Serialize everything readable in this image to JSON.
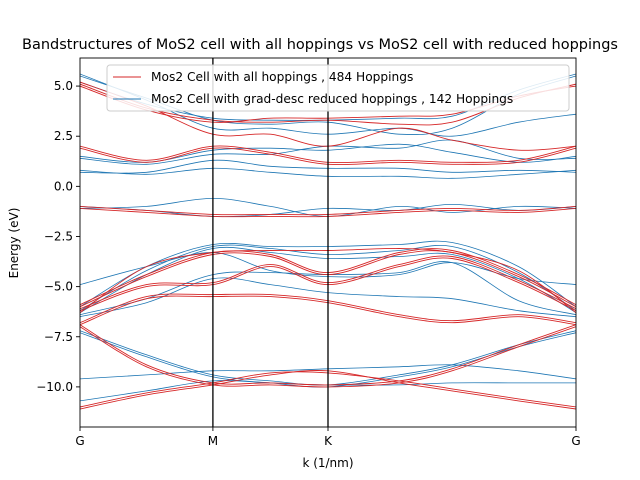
{
  "chart_data": {
    "type": "line",
    "title": "Bandstructures of MoS2 cell with all hoppings vs MoS2 cell with reduced hoppings",
    "xlabel": "k (1/nm)",
    "ylabel": "Energy (eV)",
    "xlim": [
      0,
      3.732
    ],
    "ylim": [
      -12.0,
      6.4
    ],
    "x_ticks": [
      {
        "label": "G",
        "value": 0
      },
      {
        "label": "M",
        "value": 1.0
      },
      {
        "label": "K",
        "value": 1.866
      },
      {
        "label": "G",
        "value": 3.732
      }
    ],
    "y_ticks": [
      {
        "label": "5.0",
        "value": 5.0
      },
      {
        "label": "2.5",
        "value": 2.5
      },
      {
        "label": "0.0",
        "value": 0.0
      },
      {
        "label": "−2.5",
        "value": -2.5
      },
      {
        "label": "−5.0",
        "value": -5.0
      },
      {
        "label": "−7.5",
        "value": -7.5
      },
      {
        "label": "−10.0",
        "value": -10.0
      }
    ],
    "vlines_at": [
      1.0,
      1.866
    ],
    "grid": false,
    "legend_position": "top-right",
    "k_path": [
      0,
      0.5,
      1.0,
      1.433,
      1.866,
      2.4,
      2.8,
      3.3,
      3.732
    ],
    "series": [
      {
        "name": "Mos2 Cell with all hoppings , 484 Hoppings",
        "color": "#d62728",
        "bands": [
          [
            -11.1,
            -10.4,
            -9.9,
            -9.4,
            -9.2,
            -9.8,
            -10.2,
            -10.7,
            -11.1
          ],
          [
            -11.0,
            -10.3,
            -9.8,
            -9.3,
            -9.3,
            -9.7,
            -10.1,
            -10.6,
            -11.0
          ],
          [
            -7.0,
            -9.0,
            -9.9,
            -9.9,
            -10.0,
            -9.8,
            -9.2,
            -8.0,
            -7.0
          ],
          [
            -6.9,
            -8.9,
            -9.8,
            -9.8,
            -9.9,
            -9.7,
            -9.1,
            -7.9,
            -6.9
          ],
          [
            -6.9,
            -5.6,
            -5.5,
            -5.5,
            -5.8,
            -6.5,
            -6.8,
            -6.5,
            -6.9
          ],
          [
            -6.8,
            -5.5,
            -5.4,
            -5.4,
            -5.7,
            -6.4,
            -6.7,
            -6.4,
            -6.8
          ],
          [
            -6.2,
            -5.0,
            -4.9,
            -4.0,
            -4.9,
            -4.0,
            -3.6,
            -4.8,
            -6.2
          ],
          [
            -6.1,
            -4.9,
            -4.8,
            -3.9,
            -4.8,
            -3.9,
            -3.5,
            -4.7,
            -6.1
          ],
          [
            -6.0,
            -4.5,
            -3.4,
            -3.5,
            -4.4,
            -3.4,
            -3.3,
            -4.5,
            -6.0
          ],
          [
            -5.9,
            -4.4,
            -3.3,
            -3.4,
            -4.3,
            -3.3,
            -3.2,
            -4.4,
            -5.9
          ],
          [
            -6.3,
            -4.0,
            -3.3,
            -3.2,
            -3.2,
            -3.1,
            -3.3,
            -4.2,
            -6.3
          ],
          [
            -1.1,
            -1.3,
            -1.5,
            -1.5,
            -1.5,
            -1.3,
            -1.2,
            -1.3,
            -1.1
          ],
          [
            -1.0,
            -1.2,
            -1.4,
            -1.4,
            -1.4,
            -1.2,
            -1.1,
            -1.2,
            -1.0
          ],
          [
            1.9,
            1.2,
            1.9,
            1.6,
            1.1,
            1.2,
            1.1,
            1.2,
            1.9
          ],
          [
            2.0,
            1.3,
            2.0,
            1.7,
            1.2,
            1.3,
            1.2,
            1.3,
            2.0
          ],
          [
            5.2,
            4.0,
            2.6,
            2.6,
            2.0,
            2.9,
            2.3,
            1.8,
            2.0
          ],
          [
            5.1,
            3.9,
            3.3,
            3.2,
            3.3,
            3.1,
            3.2,
            4.4,
            5.1
          ],
          [
            5.0,
            3.8,
            3.2,
            3.4,
            3.4,
            3.5,
            3.6,
            4.5,
            5.0
          ]
        ]
      },
      {
        "name": "Mos2 Cell with grad-desc reduced hoppings , 142 Hoppings",
        "color": "#1f77b4",
        "bands": [
          [
            -10.7,
            -10.2,
            -9.7,
            -9.8,
            -9.9,
            -9.9,
            -9.8,
            -9.8,
            -9.8
          ],
          [
            -9.6,
            -9.4,
            -9.2,
            -9.2,
            -9.1,
            -9.0,
            -8.9,
            -9.2,
            -9.6
          ],
          [
            -7.3,
            -8.5,
            -9.5,
            -9.8,
            -10.0,
            -9.5,
            -9.0,
            -8.0,
            -7.3
          ],
          [
            -7.2,
            -8.4,
            -9.4,
            -9.7,
            -9.9,
            -9.4,
            -8.9,
            -7.9,
            -7.2
          ],
          [
            -6.5,
            -5.8,
            -4.6,
            -4.9,
            -5.3,
            -5.5,
            -5.6,
            -6.2,
            -6.5
          ],
          [
            -6.4,
            -5.6,
            -4.4,
            -4.3,
            -4.4,
            -4.3,
            -3.8,
            -5.7,
            -6.4
          ],
          [
            -6.3,
            -4.4,
            -3.1,
            -3.3,
            -3.6,
            -3.5,
            -3.4,
            -4.6,
            -6.3
          ],
          [
            -6.2,
            -4.2,
            -3.0,
            -3.1,
            -3.4,
            -3.2,
            -3.0,
            -4.3,
            -6.2
          ],
          [
            -6.0,
            -4.0,
            -2.9,
            -3.0,
            -3.0,
            -2.9,
            -2.8,
            -4.0,
            -6.0
          ],
          [
            -4.9,
            -4.0,
            -3.3,
            -4.2,
            -4.5,
            -4.4,
            -3.8,
            -4.6,
            -4.9
          ],
          [
            -1.0,
            -1.2,
            -1.5,
            -1.4,
            -1.1,
            -1.2,
            -0.9,
            -1.2,
            -1.0
          ],
          [
            -1.1,
            -1.0,
            -0.6,
            -1.0,
            -1.5,
            -1.0,
            -1.3,
            -1.0,
            -1.1
          ],
          [
            0.8,
            0.6,
            0.9,
            0.7,
            0.5,
            0.5,
            0.4,
            0.6,
            0.8
          ],
          [
            0.7,
            0.7,
            1.3,
            1.0,
            0.9,
            0.9,
            0.7,
            0.8,
            0.7
          ],
          [
            1.5,
            1.2,
            1.8,
            1.9,
            1.8,
            2.1,
            1.7,
            1.2,
            1.5
          ],
          [
            1.4,
            1.1,
            1.6,
            1.6,
            2.0,
            1.9,
            2.3,
            1.4,
            1.4
          ],
          [
            5.6,
            4.3,
            2.9,
            2.9,
            2.6,
            2.9,
            2.5,
            3.2,
            3.6
          ],
          [
            5.5,
            4.4,
            3.3,
            3.1,
            3.2,
            2.6,
            2.9,
            4.6,
            5.5
          ],
          [
            5.2,
            4.1,
            3.4,
            3.3,
            3.3,
            3.4,
            3.5,
            4.8,
            5.6
          ]
        ]
      }
    ]
  }
}
